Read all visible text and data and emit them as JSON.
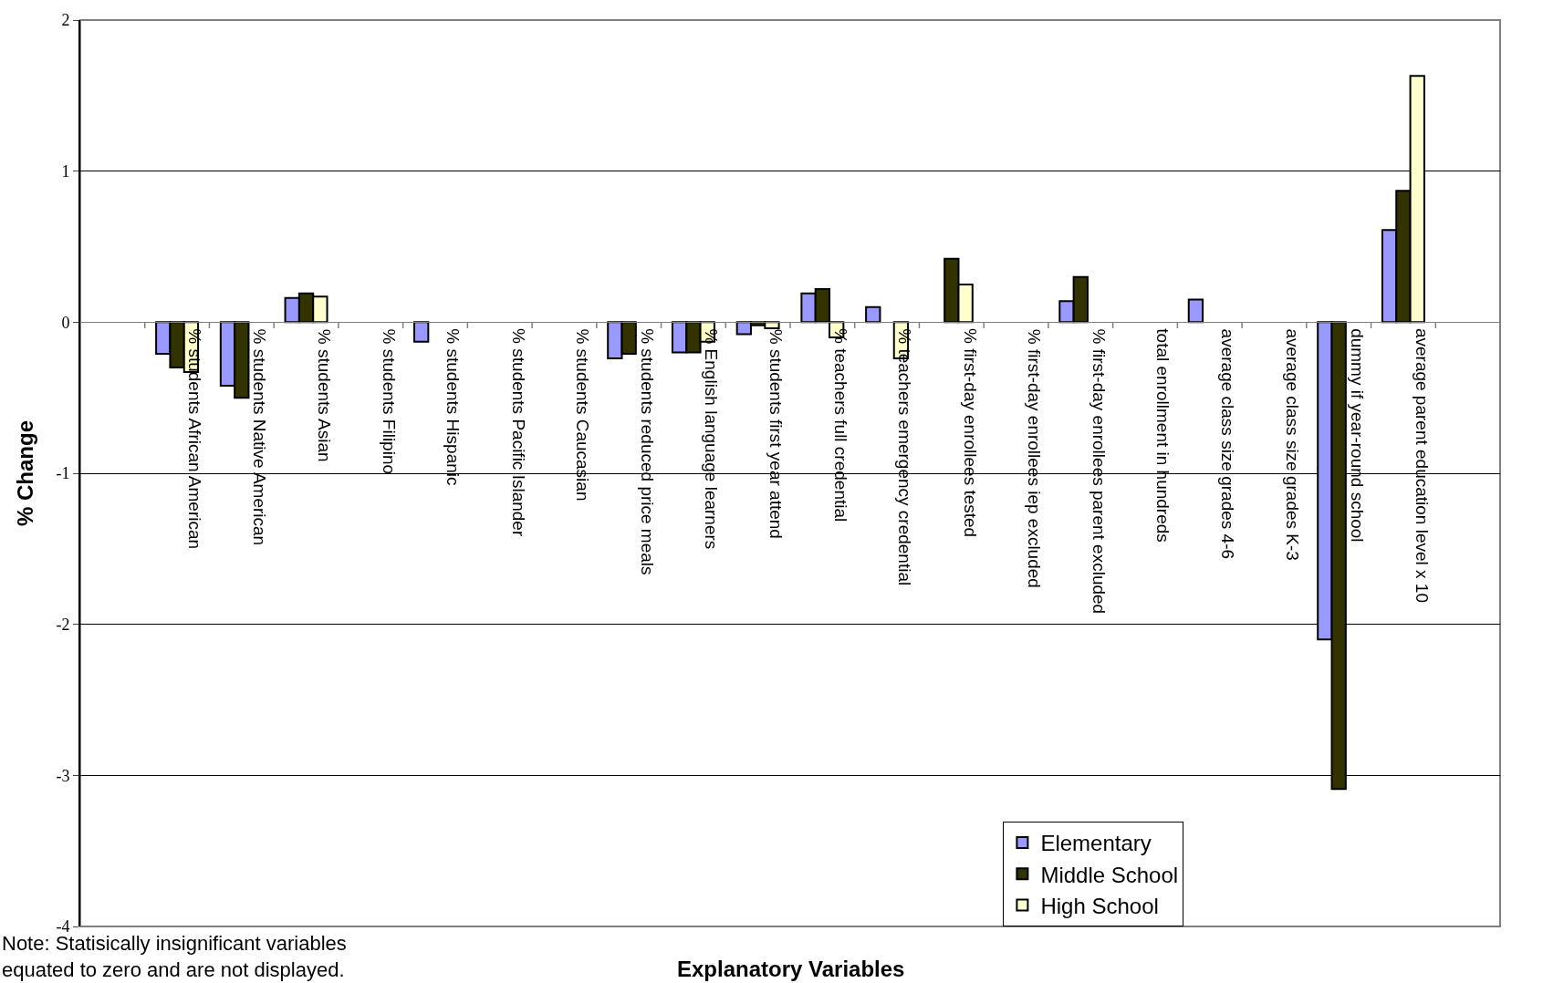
{
  "chart_data": {
    "type": "bar",
    "xlabel": "Explanatory Variables",
    "ylabel": "% Change",
    "categories": [
      null,
      "% students African American",
      "% students Native American",
      "% students Asian",
      "% students Filipino",
      "% students Hispanic",
      "% students Pacific Islander",
      "% students Caucasian",
      "% students reduced price meals",
      "% English language learners",
      "% students first year attend",
      "% teachers full credential",
      "% teachers emergency credential",
      "% first-day enrollees tested",
      "% first-day enrollees iep excluded",
      "% first-day enrollees parent excluded",
      "total enrollment in hundreds",
      "average class size grades 4-6",
      "average class size grades K-3",
      "dummy if year-round school",
      "average parent education level x 10",
      null
    ],
    "series": [
      {
        "name": "Elementary",
        "color": "#9999ff",
        "values": [
          null,
          -0.21,
          -0.42,
          0.16,
          null,
          -0.13,
          null,
          null,
          -0.24,
          -0.2,
          -0.08,
          0.19,
          0.1,
          null,
          null,
          0.14,
          null,
          0.15,
          null,
          -2.1,
          0.61,
          null
        ]
      },
      {
        "name": "Middle School",
        "color": "#333300",
        "values": [
          null,
          -0.3,
          -0.5,
          0.19,
          null,
          null,
          null,
          null,
          -0.21,
          -0.2,
          -0.02,
          0.22,
          null,
          0.42,
          null,
          0.3,
          null,
          null,
          null,
          -3.09,
          0.87,
          null
        ]
      },
      {
        "name": "High School",
        "color": "#ffffcc",
        "values": [
          null,
          -0.33,
          null,
          0.17,
          null,
          null,
          null,
          null,
          null,
          -0.13,
          -0.04,
          -0.1,
          -0.24,
          0.25,
          null,
          null,
          null,
          null,
          null,
          null,
          1.63,
          null
        ]
      }
    ],
    "ylim": [
      -4,
      2
    ],
    "yticks": [
      -4,
      -3,
      -2,
      -1,
      0,
      1,
      2
    ],
    "grid": "y",
    "legend": "bottom right",
    "annotations": [
      "Note: Statisically insignificant variables\nequated to zero and are not displayed."
    ]
  }
}
